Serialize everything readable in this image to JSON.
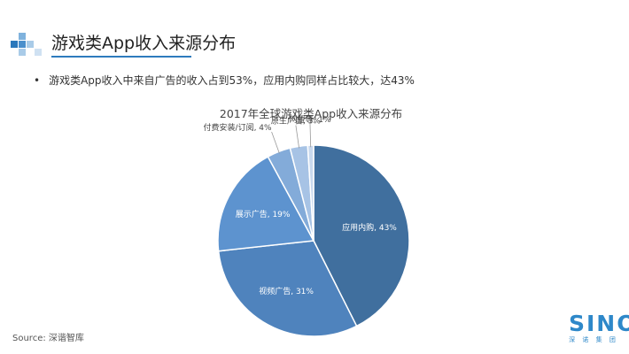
{
  "header": {
    "title": "游戏类App收入来源分布"
  },
  "bullet": {
    "text": "游戏类App收入中来自广告的收入占到53%，应用内购同样占比较大，达43%"
  },
  "chart_data": {
    "type": "pie",
    "title": "2017年全球游戏类App收入来源分布",
    "unit": "%",
    "slices": [
      {
        "label": "应用内购",
        "value": 43,
        "color": "#406f9e",
        "display": "应用内购, 43%"
      },
      {
        "label": "视频广告",
        "value": 31,
        "color": "#4f83bd",
        "display": "视频广告, 31%"
      },
      {
        "label": "展示广告",
        "value": 19,
        "color": "#5d93cf",
        "display": "展示广告, 19%"
      },
      {
        "label": "付费安装/订阅",
        "value": 4,
        "color": "#83abd9",
        "display": "付费安装/订阅, 4%"
      },
      {
        "label": "原生广告",
        "value": 3,
        "color": "#a7c3e5",
        "display": "原生广告, 3%"
      },
      {
        "label": "网盟等",
        "value": 1,
        "color": "#c9d9ee",
        "display": "网盟等, 1%"
      }
    ],
    "legend": "none",
    "labels": "data labels with leader lines for small slices"
  },
  "footer": {
    "source": "Source: 深谐智库",
    "brand_name": "SINO",
    "brand_sub": "深 诺 集 团"
  },
  "colors": {
    "accent": "#2e7bbd",
    "brand": "#2e88c9"
  }
}
